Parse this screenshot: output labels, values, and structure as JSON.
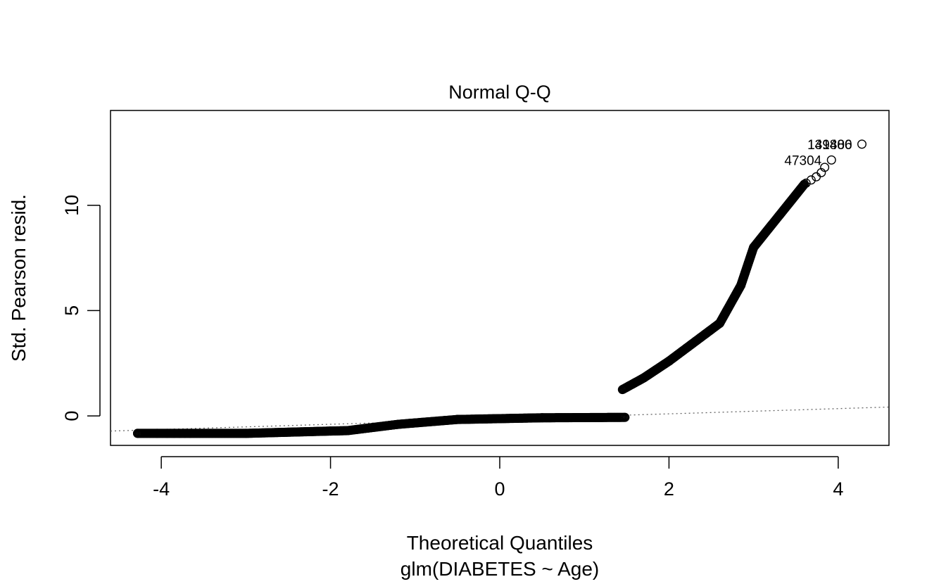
{
  "chart_data": {
    "type": "scatter",
    "title": "Normal Q-Q",
    "xlabel": "Theoretical Quantiles",
    "subtitle": "glm(DIABETES ~ Age)",
    "ylabel": "Std. Pearson resid.",
    "xlim": [
      -4.6,
      4.6
    ],
    "ylim": [
      -1.4,
      14.5
    ],
    "x_ticks": [
      -4,
      -2,
      0,
      2,
      4
    ],
    "x_tick_labels": [
      "-4",
      "-2",
      "0",
      "2",
      "4"
    ],
    "y_ticks": [
      0,
      5,
      10
    ],
    "y_tick_labels": [
      "0",
      "5",
      "10"
    ],
    "reference_line": {
      "style": "dotted",
      "color": "#666666",
      "points": [
        [
          -4.6,
          -0.72
        ],
        [
          4.6,
          0.42
        ]
      ]
    },
    "point_color": "#000000",
    "point_style": "open-circle",
    "segments": [
      {
        "x_start": -4.28,
        "x_end": -3.0,
        "y_start": -0.83,
        "y_end": -0.83
      },
      {
        "x_start": -3.0,
        "x_end": -2.0,
        "y_start": -0.83,
        "y_end": -0.72
      },
      {
        "x_start": -2.0,
        "x_end": -1.8,
        "y_start": -0.72,
        "y_end": -0.7
      },
      {
        "x_start": -1.8,
        "x_end": -1.2,
        "y_start": -0.7,
        "y_end": -0.4
      },
      {
        "x_start": -1.2,
        "x_end": -0.5,
        "y_start": -0.4,
        "y_end": -0.17
      },
      {
        "x_start": -0.5,
        "x_end": 0.5,
        "y_start": -0.17,
        "y_end": -0.09
      },
      {
        "x_start": 0.5,
        "x_end": 1.48,
        "y_start": -0.09,
        "y_end": -0.07
      },
      {
        "x_start": 1.45,
        "x_end": 1.7,
        "y_start": 1.25,
        "y_end": 1.8
      },
      {
        "x_start": 1.7,
        "x_end": 2.0,
        "y_start": 1.8,
        "y_end": 2.6
      },
      {
        "x_start": 2.0,
        "x_end": 2.6,
        "y_start": 2.6,
        "y_end": 4.4
      },
      {
        "x_start": 2.6,
        "x_end": 2.85,
        "y_start": 4.4,
        "y_end": 6.2
      },
      {
        "x_start": 2.85,
        "x_end": 3.0,
        "y_start": 6.2,
        "y_end": 8.0
      },
      {
        "x_start": 3.0,
        "x_end": 3.3,
        "y_start": 8.0,
        "y_end": 9.5
      },
      {
        "x_start": 3.3,
        "x_end": 3.6,
        "y_start": 9.5,
        "y_end": 11.0
      }
    ],
    "isolated_points": [
      {
        "x": -4.28,
        "y": -0.83
      },
      {
        "x": -4.05,
        "y": -0.83
      },
      {
        "x": -3.93,
        "y": -0.83
      },
      {
        "x": -3.85,
        "y": -0.83
      },
      {
        "x": -3.78,
        "y": -0.83
      },
      {
        "x": -3.72,
        "y": -0.83
      },
      {
        "x": -3.66,
        "y": -0.83
      },
      {
        "x": 3.62,
        "y": 11.05
      },
      {
        "x": 3.68,
        "y": 11.2
      },
      {
        "x": 3.74,
        "y": 11.35
      },
      {
        "x": 3.8,
        "y": 11.55
      },
      {
        "x": 3.84,
        "y": 11.8
      },
      {
        "x": 3.92,
        "y": 12.15
      },
      {
        "x": 4.28,
        "y": 12.9
      }
    ],
    "labeled_points": [
      {
        "x": 3.92,
        "y": 12.15,
        "label": "47304"
      },
      {
        "x": 4.28,
        "y": 12.9,
        "label": "131480"
      },
      {
        "x": 4.28,
        "y": 12.9,
        "label": "149806"
      }
    ]
  }
}
